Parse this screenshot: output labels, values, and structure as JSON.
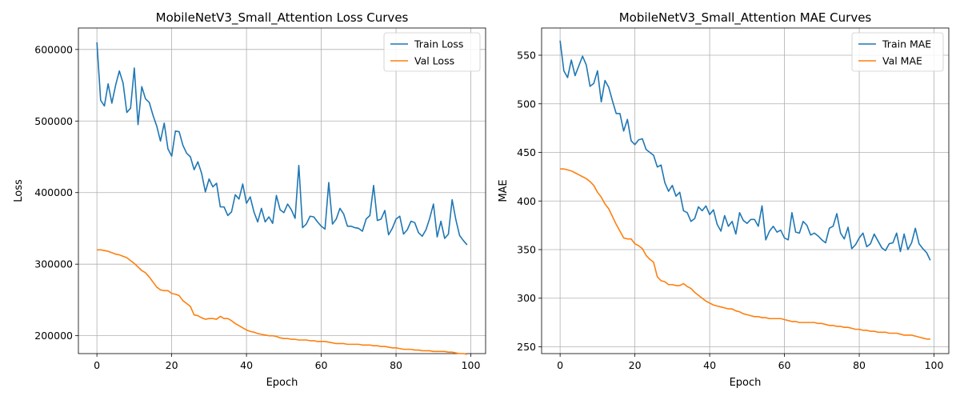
{
  "colors": {
    "train": "#1f77b4",
    "val": "#ff7f0e",
    "grid": "#b0b0b0",
    "axis": "#000000"
  },
  "chart_data": [
    {
      "type": "line",
      "title": "MobileNetV3_Small_Attention Loss Curves",
      "xlabel": "Epoch",
      "ylabel": "Loss",
      "xlim": [
        -4.95,
        103.95
      ],
      "ylim": [
        175000,
        630000
      ],
      "xticks": [
        0,
        20,
        40,
        60,
        80,
        100
      ],
      "xtick_labels": [
        "0",
        "20",
        "40",
        "60",
        "80",
        "100"
      ],
      "yticks": [
        200000,
        300000,
        400000,
        500000,
        600000
      ],
      "ytick_labels": [
        "200000",
        "300000",
        "400000",
        "500000",
        "600000"
      ],
      "grid": true,
      "legend_position": "upper right",
      "x": [
        0,
        1,
        2,
        3,
        4,
        5,
        6,
        7,
        8,
        9,
        10,
        11,
        12,
        13,
        14,
        15,
        16,
        17,
        18,
        19,
        20,
        21,
        22,
        23,
        24,
        25,
        26,
        27,
        28,
        29,
        30,
        31,
        32,
        33,
        34,
        35,
        36,
        37,
        38,
        39,
        40,
        41,
        42,
        43,
        44,
        45,
        46,
        47,
        48,
        49,
        50,
        51,
        52,
        53,
        54,
        55,
        56,
        57,
        58,
        59,
        60,
        61,
        62,
        63,
        64,
        65,
        66,
        67,
        68,
        69,
        70,
        71,
        72,
        73,
        74,
        75,
        76,
        77,
        78,
        79,
        80,
        81,
        82,
        83,
        84,
        85,
        86,
        87,
        88,
        89,
        90,
        91,
        92,
        93,
        94,
        95,
        96,
        97,
        98,
        99
      ],
      "series": [
        {
          "name": "Train Loss",
          "color": "#1f77b4",
          "values": [
            610000,
            529000,
            521000,
            552000,
            525000,
            550000,
            570000,
            553000,
            512000,
            518000,
            574000,
            495000,
            548000,
            531000,
            526000,
            508000,
            493000,
            472000,
            497000,
            461000,
            451000,
            486000,
            485000,
            466000,
            455000,
            450000,
            432000,
            443000,
            427000,
            401000,
            419000,
            408000,
            413000,
            380000,
            380000,
            368000,
            373000,
            397000,
            391000,
            412000,
            385000,
            394000,
            373000,
            359000,
            378000,
            359000,
            366000,
            357000,
            396000,
            376000,
            372000,
            384000,
            376000,
            364000,
            438000,
            351000,
            356000,
            367000,
            366000,
            359000,
            353000,
            349000,
            414000,
            356000,
            363000,
            378000,
            370000,
            353000,
            353000,
            351000,
            350000,
            346000,
            363000,
            368000,
            410000,
            361000,
            363000,
            375000,
            341000,
            350000,
            363000,
            367000,
            342000,
            348000,
            360000,
            358000,
            344000,
            339000,
            348000,
            364000,
            384000,
            338000,
            360000,
            336000,
            342000,
            390000,
            362000,
            340000,
            333000,
            327000
          ]
        },
        {
          "name": "Val Loss",
          "color": "#ff7f0e",
          "values": [
            320000,
            320000,
            319000,
            318000,
            316000,
            314000,
            313000,
            311000,
            309000,
            305000,
            301000,
            296000,
            291000,
            288000,
            282000,
            275000,
            268000,
            264000,
            263000,
            263000,
            259000,
            258000,
            256000,
            249000,
            245000,
            241000,
            229000,
            228000,
            225000,
            223000,
            224000,
            224000,
            223000,
            227000,
            224000,
            224000,
            221000,
            217000,
            214000,
            211000,
            208000,
            206000,
            205000,
            203000,
            202000,
            201000,
            200000,
            200000,
            199000,
            197000,
            196000,
            196000,
            195000,
            195000,
            194000,
            194000,
            194000,
            193000,
            193000,
            192000,
            192000,
            192000,
            191000,
            190000,
            189000,
            189000,
            189000,
            188000,
            188000,
            188000,
            188000,
            187000,
            187000,
            187000,
            186000,
            186000,
            185000,
            185000,
            184000,
            183000,
            183000,
            182000,
            181000,
            181000,
            181000,
            180000,
            180000,
            179000,
            179000,
            179000,
            178000,
            178000,
            178000,
            178000,
            177000,
            177000,
            176000,
            175000,
            175000,
            174000
          ]
        }
      ]
    },
    {
      "type": "line",
      "title": "MobileNetV3_Small_Attention MAE Curves",
      "xlabel": "Epoch",
      "ylabel": "MAE",
      "xlim": [
        -4.95,
        103.95
      ],
      "ylim": [
        243,
        578
      ],
      "xticks": [
        0,
        20,
        40,
        60,
        80,
        100
      ],
      "xtick_labels": [
        "0",
        "20",
        "40",
        "60",
        "80",
        "100"
      ],
      "yticks": [
        250,
        300,
        350,
        400,
        450,
        500,
        550
      ],
      "ytick_labels": [
        "250",
        "300",
        "350",
        "400",
        "450",
        "500",
        "550"
      ],
      "grid": true,
      "legend_position": "upper right",
      "x": [
        0,
        1,
        2,
        3,
        4,
        5,
        6,
        7,
        8,
        9,
        10,
        11,
        12,
        13,
        14,
        15,
        16,
        17,
        18,
        19,
        20,
        21,
        22,
        23,
        24,
        25,
        26,
        27,
        28,
        29,
        30,
        31,
        32,
        33,
        34,
        35,
        36,
        37,
        38,
        39,
        40,
        41,
        42,
        43,
        44,
        45,
        46,
        47,
        48,
        49,
        50,
        51,
        52,
        53,
        54,
        55,
        56,
        57,
        58,
        59,
        60,
        61,
        62,
        63,
        64,
        65,
        66,
        67,
        68,
        69,
        70,
        71,
        72,
        73,
        74,
        75,
        76,
        77,
        78,
        79,
        80,
        81,
        82,
        83,
        84,
        85,
        86,
        87,
        88,
        89,
        90,
        91,
        92,
        93,
        94,
        95,
        96,
        97,
        98,
        99
      ],
      "series": [
        {
          "name": "Train MAE",
          "color": "#1f77b4",
          "values": [
            565,
            534,
            527,
            545,
            529,
            539,
            549,
            540,
            518,
            521,
            534,
            502,
            524,
            517,
            503,
            490,
            490,
            472,
            484,
            462,
            458,
            463,
            464,
            453,
            450,
            447,
            435,
            437,
            419,
            410,
            416,
            405,
            409,
            390,
            388,
            379,
            382,
            394,
            390,
            395,
            386,
            391,
            376,
            369,
            385,
            374,
            379,
            366,
            388,
            380,
            377,
            381,
            381,
            374,
            395,
            360,
            369,
            374,
            368,
            370,
            362,
            360,
            388,
            368,
            367,
            379,
            375,
            365,
            367,
            364,
            360,
            357,
            372,
            374,
            387,
            367,
            361,
            373,
            351,
            355,
            362,
            367,
            353,
            356,
            366,
            359,
            352,
            349,
            356,
            357,
            367,
            348,
            366,
            350,
            357,
            372,
            356,
            351,
            347,
            339
          ]
        },
        {
          "name": "Val MAE",
          "color": "#ff7f0e",
          "values": [
            433,
            433,
            432,
            431,
            429,
            427,
            425,
            423,
            420,
            416,
            409,
            404,
            397,
            392,
            384,
            376,
            369,
            362,
            361,
            361,
            356,
            354,
            351,
            344,
            340,
            337,
            322,
            318,
            317,
            314,
            314,
            313,
            313,
            315,
            312,
            310,
            306,
            303,
            300,
            297,
            295,
            293,
            292,
            291,
            290,
            289,
            289,
            287,
            286,
            284,
            283,
            282,
            281,
            281,
            280,
            280,
            279,
            279,
            279,
            279,
            278,
            277,
            276,
            276,
            275,
            275,
            275,
            275,
            275,
            274,
            274,
            273,
            272,
            272,
            271,
            271,
            270,
            270,
            269,
            268,
            268,
            267,
            267,
            266,
            266,
            265,
            265,
            265,
            264,
            264,
            264,
            263,
            262,
            262,
            262,
            261,
            260,
            259,
            258,
            258
          ]
        }
      ]
    }
  ]
}
